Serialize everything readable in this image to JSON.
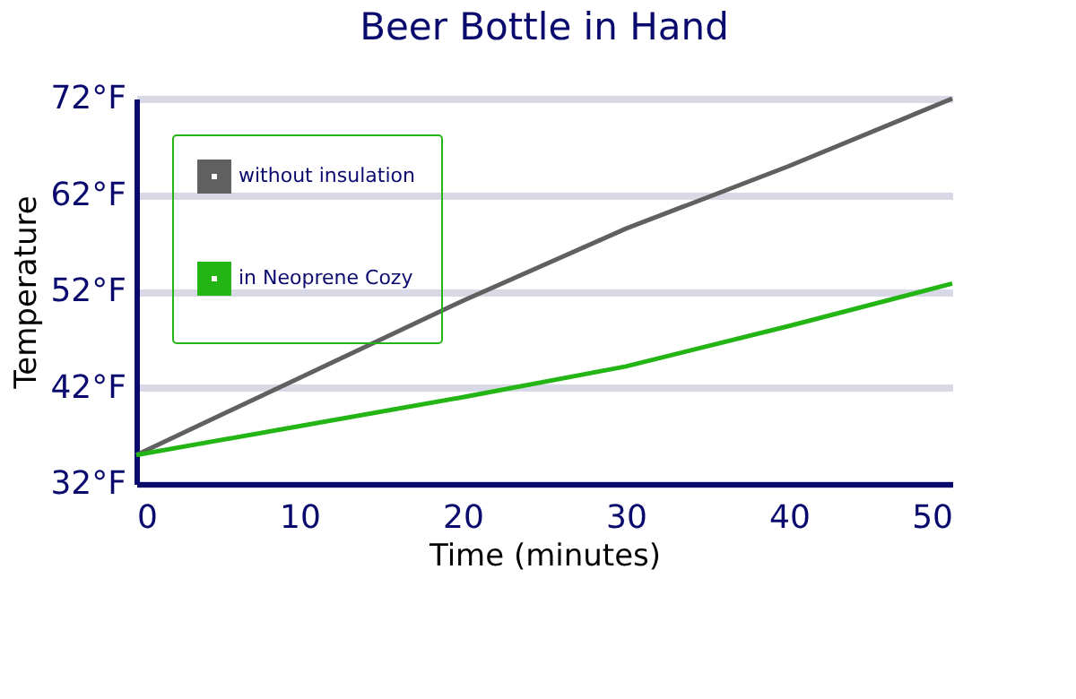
{
  "chart_data": {
    "type": "line",
    "title": "Beer Bottle in Hand",
    "xlabel": "Time (minutes)",
    "ylabel": "Temperature",
    "x": [
      0,
      10,
      20,
      30,
      40,
      50
    ],
    "series": [
      {
        "name": "without insulation",
        "color": "#606060",
        "values": [
          35,
          43,
          51,
          58.5,
          65,
          72
        ]
      },
      {
        "name": "in Neoprene Cozy",
        "color": "#22b514",
        "values": [
          35,
          38,
          41,
          44.2,
          48.4,
          52.8
        ]
      }
    ],
    "xlim": [
      0,
      50
    ],
    "xticks": [
      0,
      10,
      20,
      30,
      40,
      50
    ],
    "ylim": [
      32,
      72
    ],
    "yticks": [
      {
        "value": 32,
        "label": "32°F"
      },
      {
        "value": 42,
        "label": "42°F"
      },
      {
        "value": 52,
        "label": "52°F"
      },
      {
        "value": 62,
        "label": "62°F"
      },
      {
        "value": 72,
        "label": "72°F"
      }
    ],
    "grid": "y",
    "legend": "top left",
    "marker": "none",
    "line_style": "solid"
  }
}
